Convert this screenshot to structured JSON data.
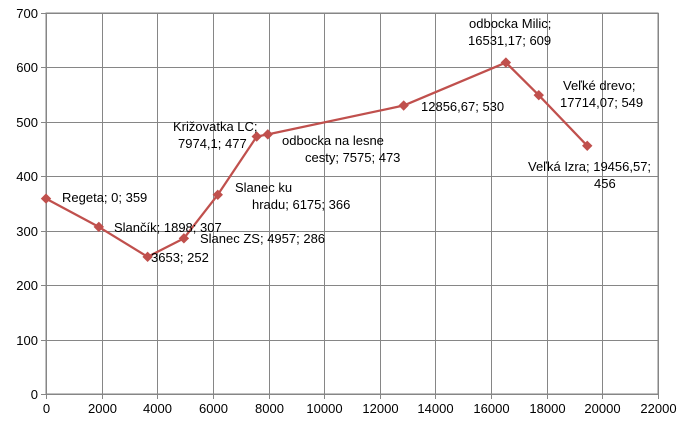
{
  "chart_data": {
    "type": "scatter",
    "title": "",
    "xlabel": "",
    "ylabel": "",
    "xlim": [
      0,
      22000
    ],
    "ylim": [
      0,
      700
    ],
    "x_ticks": [
      "0",
      "2000",
      "4000",
      "6000",
      "8000",
      "10000",
      "12000",
      "14000",
      "16000",
      "18000",
      "20000",
      "22000"
    ],
    "y_ticks": [
      "0",
      "100",
      "200",
      "300",
      "400",
      "500",
      "600",
      "700"
    ],
    "grid": true,
    "legend": "none",
    "line_color": "#c0504d",
    "marker_color": "#c0504d",
    "series": [
      {
        "points": [
          {
            "x": 0,
            "y": 359,
            "label": "Regeta; 0; 359"
          },
          {
            "x": 1898,
            "y": 307,
            "label": "Slančík; 1898; 307"
          },
          {
            "x": 3653,
            "y": 252,
            "label": "3653; 252"
          },
          {
            "x": 4957,
            "y": 286,
            "label": "Slanec ZS; 4957; 286"
          },
          {
            "x": 6175,
            "y": 366,
            "label": "Slanec ku hradu; 6175; 366"
          },
          {
            "x": 7575,
            "y": 473,
            "label": "odbocka na lesne cesty; 7575; 473"
          },
          {
            "x": 7974.1,
            "y": 477,
            "label": "Križovatka LC; 7974,1; 477"
          },
          {
            "x": 12856.67,
            "y": 530,
            "label": "12856,67; 530"
          },
          {
            "x": 16531.17,
            "y": 609,
            "label": "odbocka Milic; 16531,17; 609"
          },
          {
            "x": 17714.07,
            "y": 549,
            "label": "Veľké drevo; 17714,07; 549"
          },
          {
            "x": 19456.57,
            "y": 456,
            "label": "Veľká Izra; 19456,57; 456"
          }
        ]
      }
    ]
  }
}
